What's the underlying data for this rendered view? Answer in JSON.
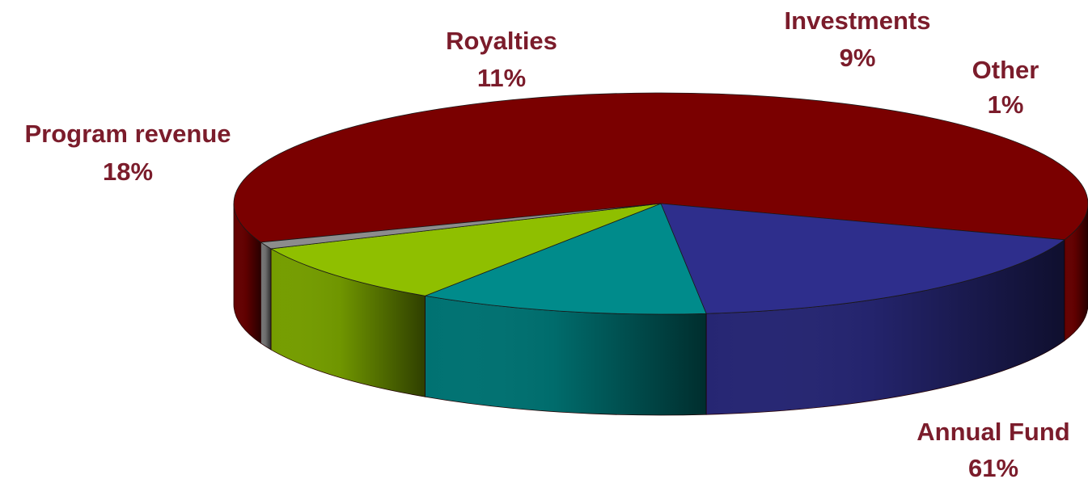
{
  "chart_data": {
    "type": "pie",
    "title": "",
    "three_d": true,
    "slices": [
      {
        "name": "Annual Fund",
        "value": 61,
        "label": "61%",
        "color": "#7A0000"
      },
      {
        "name": "Program revenue",
        "value": 18,
        "label": "18%",
        "color": "#2E2E8C"
      },
      {
        "name": "Royalties",
        "value": 11,
        "label": "11%",
        "color": "#008B8B"
      },
      {
        "name": "Investments",
        "value": 9,
        "label": "9%",
        "color": "#8FBF00"
      },
      {
        "name": "Other",
        "value": 1,
        "label": "1%",
        "color": "#8C8C8C"
      }
    ],
    "label_color": "#7B1C2B",
    "legend": "none"
  }
}
